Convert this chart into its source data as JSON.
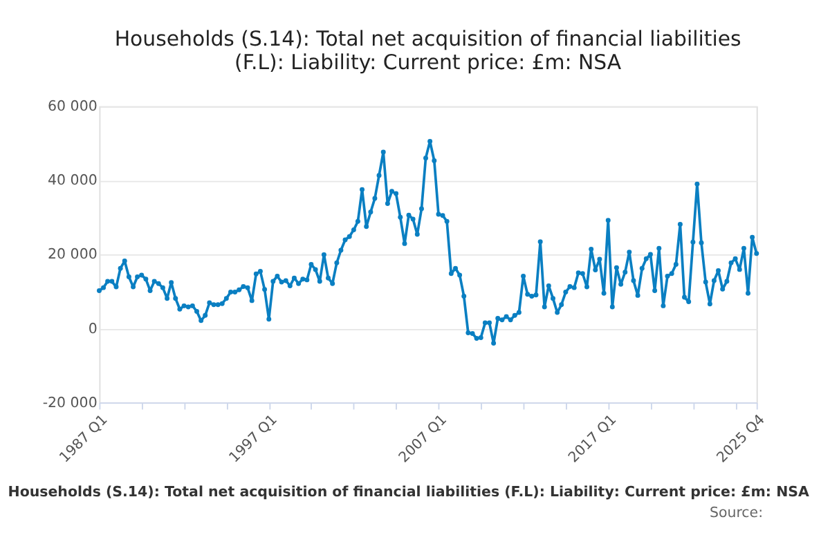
{
  "chart_data": {
    "type": "line",
    "title": [
      "Households (S.14): Total net acquisition of financial liabilities",
      "(F.L): Liability: Current price: £m: NSA"
    ],
    "x": [
      "1987-01",
      "1987-04",
      "1987-07",
      "1987-10",
      "1988-01",
      "1988-04",
      "1988-07",
      "1988-10",
      "1989-01",
      "1989-04",
      "1989-07",
      "1989-10",
      "1990-01",
      "1990-04",
      "1990-07",
      "1990-10",
      "1991-01",
      "1991-04",
      "1991-07",
      "1991-10",
      "1992-01",
      "1992-04",
      "1992-07",
      "1992-10",
      "1993-01",
      "1993-04",
      "1993-07",
      "1993-10",
      "1994-01",
      "1994-04",
      "1994-07",
      "1994-10",
      "1995-01",
      "1995-04",
      "1995-07",
      "1995-10",
      "1996-01",
      "1996-04",
      "1996-07",
      "1996-10",
      "1997-01",
      "1997-04",
      "1997-07",
      "1997-10",
      "1998-01",
      "1998-04",
      "1998-07",
      "1998-10",
      "1999-01",
      "1999-04",
      "1999-07",
      "1999-10",
      "2000-01",
      "2000-04",
      "2000-07",
      "2000-10",
      "2001-01",
      "2001-04",
      "2001-07",
      "2001-10",
      "2002-01",
      "2002-04",
      "2002-07",
      "2002-10",
      "2003-01",
      "2003-04",
      "2003-07",
      "2003-10",
      "2004-01",
      "2004-04",
      "2004-07",
      "2004-10",
      "2005-01",
      "2005-04",
      "2005-07",
      "2005-10",
      "2006-01",
      "2006-04",
      "2006-07",
      "2006-10",
      "2007-01",
      "2007-04",
      "2007-07",
      "2007-10",
      "2008-01",
      "2008-04",
      "2008-07",
      "2008-10",
      "2009-01",
      "2009-04",
      "2009-07",
      "2009-10",
      "2010-01",
      "2010-04",
      "2010-07",
      "2010-10",
      "2011-01",
      "2011-04",
      "2011-07",
      "2011-10",
      "2012-01",
      "2012-04",
      "2012-07",
      "2012-10",
      "2013-01",
      "2013-04",
      "2013-07",
      "2013-10",
      "2014-01",
      "2014-04",
      "2014-07",
      "2014-10",
      "2015-01",
      "2015-04",
      "2015-07",
      "2015-10",
      "2016-01",
      "2016-04",
      "2016-07",
      "2016-10",
      "2017-01",
      "2017-04",
      "2017-07",
      "2017-10",
      "2018-01",
      "2018-04",
      "2018-07",
      "2018-10",
      "2019-01",
      "2019-04",
      "2019-07",
      "2019-10",
      "2020-01",
      "2020-04",
      "2020-07",
      "2020-10",
      "2021-01",
      "2021-04",
      "2021-07",
      "2021-10",
      "2022-01",
      "2022-04",
      "2022-07",
      "2022-10",
      "2023-01",
      "2023-04",
      "2023-07",
      "2023-10",
      "2024-01",
      "2024-04",
      "2024-07",
      "2024-10",
      "2025-01",
      "2025-04",
      "2025-07",
      "2025-10"
    ],
    "xlim": [
      "1987-01",
      "2025-10"
    ],
    "xticks": [
      {
        "value": "1987-01",
        "label": "1987 Q1"
      },
      {
        "value": "1989-07",
        "label": null
      },
      {
        "value": "1992-01",
        "label": null
      },
      {
        "value": "1994-07",
        "label": null
      },
      {
        "value": "1997-01",
        "label": "1997 Q1"
      },
      {
        "value": "1999-07",
        "label": null
      },
      {
        "value": "2002-01",
        "label": null
      },
      {
        "value": "2004-07",
        "label": null
      },
      {
        "value": "2007-01",
        "label": "2007 Q1"
      },
      {
        "value": "2009-07",
        "label": null
      },
      {
        "value": "2012-01",
        "label": null
      },
      {
        "value": "2014-07",
        "label": null
      },
      {
        "value": "2017-01",
        "label": "2017 Q1"
      },
      {
        "value": "2019-07",
        "label": null
      },
      {
        "value": "2022-01",
        "label": null
      },
      {
        "value": "2024-07",
        "label": null
      },
      {
        "value": "2025-10",
        "label": "2025 Q4"
      }
    ],
    "series": [
      {
        "color": "#0a7fc2",
        "values": [
          10200,
          11000,
          12700,
          12700,
          11200,
          16200,
          18200,
          13900,
          11200,
          13900,
          14400,
          13300,
          10200,
          12700,
          12100,
          11000,
          8100,
          12400,
          8100,
          5200,
          6100,
          5800,
          6100,
          4600,
          2100,
          3500,
          6900,
          6400,
          6400,
          6700,
          8100,
          9800,
          9800,
          10400,
          11300,
          11000,
          7500,
          14700,
          15400,
          10500,
          2500,
          12700,
          14100,
          12500,
          12900,
          11500,
          13600,
          12100,
          13300,
          13100,
          17300,
          15900,
          12700,
          19900,
          13600,
          12100,
          17700,
          21100,
          23900,
          24800,
          26600,
          28900,
          37500,
          27500,
          31400,
          35100,
          41300,
          47600,
          33700,
          37000,
          36400,
          30000,
          22900,
          30600,
          29500,
          25400,
          32300,
          46000,
          50500,
          45300,
          30800,
          30500,
          28900,
          14800,
          16200,
          14400,
          8700,
          -1200,
          -1400,
          -2700,
          -2500,
          1500,
          1500,
          -4000,
          2700,
          2300,
          3200,
          2300,
          3500,
          4300,
          14100,
          9200,
          8700,
          9000,
          23400,
          5800,
          11500,
          8100,
          4300,
          6400,
          9800,
          11300,
          11000,
          15000,
          14800,
          11200,
          21400,
          15800,
          18700,
          9500,
          29200,
          5800,
          16400,
          11900,
          15200,
          20600,
          12900,
          8900,
          16200,
          18800,
          20000,
          10200,
          21600,
          6100,
          14100,
          14800,
          17300,
          28100,
          8400,
          7200,
          23300,
          39000,
          23100,
          12500,
          6600,
          12900,
          15600,
          10600,
          12700,
          17700,
          18800,
          15900,
          21600,
          9500,
          24600,
          20200
        ]
      }
    ],
    "ylim": [
      -20000,
      60000
    ],
    "yticks": [
      {
        "value": -20000,
        "label": "-20 000"
      },
      0,
      {
        "value": 20000,
        "label": "20 000"
      },
      {
        "value": 40000,
        "label": "40 000"
      },
      {
        "value": 60000,
        "label": "60 000"
      }
    ],
    "grid": "y",
    "marker": "circle",
    "line_style": "solid",
    "legend": false,
    "annotations": [
      "Households (S.14): Total net acquisition of financial liabilities (F.L): Liability: Current price: £m: NSA",
      "Source:"
    ]
  }
}
